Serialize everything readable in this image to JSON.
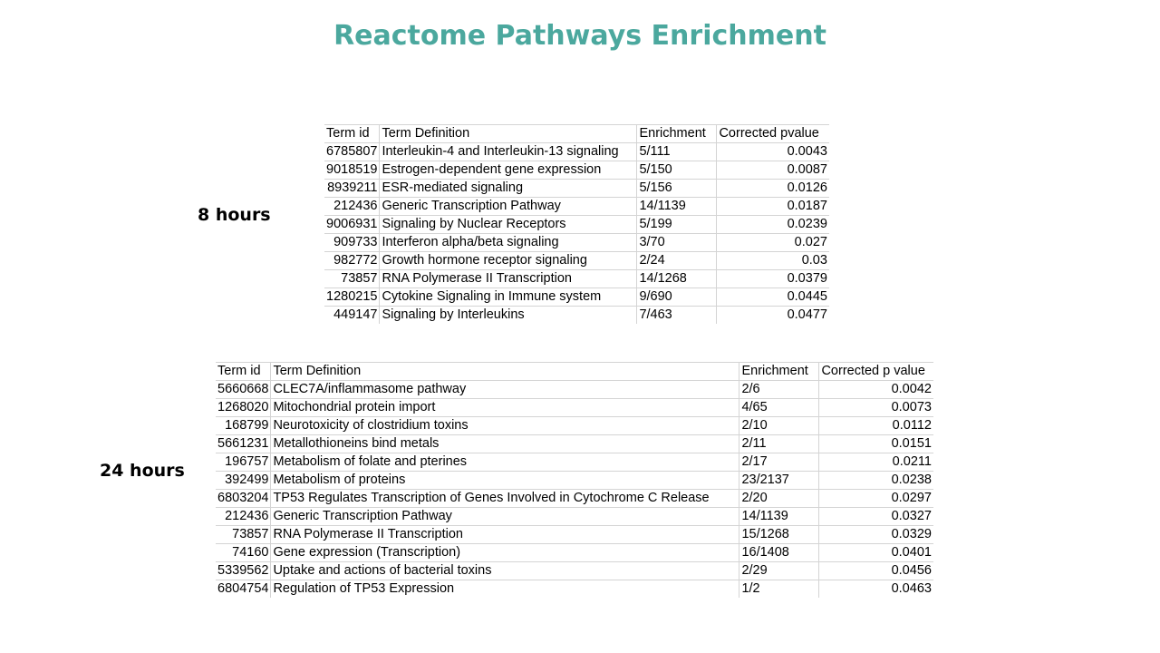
{
  "title": "Reactome Pathways Enrichment",
  "colors": {
    "title": "#4ba89e",
    "grid": "#d4d4d4"
  },
  "sections": [
    {
      "label": "8 hours",
      "headers": [
        "Term id",
        "Term Definition",
        "Enrichment",
        "Corrected pvalue"
      ],
      "rows": [
        [
          "6785807",
          "Interleukin-4 and Interleukin-13 signaling",
          "5/111",
          "0.0043"
        ],
        [
          "9018519",
          "Estrogen-dependent gene expression",
          "5/150",
          "0.0087"
        ],
        [
          "8939211",
          "ESR-mediated signaling",
          "5/156",
          "0.0126"
        ],
        [
          "212436",
          "Generic Transcription Pathway",
          "14/1139",
          "0.0187"
        ],
        [
          "9006931",
          "Signaling by Nuclear Receptors",
          "5/199",
          "0.0239"
        ],
        [
          "909733",
          "Interferon alpha/beta signaling",
          "3/70",
          "0.027"
        ],
        [
          "982772",
          "Growth hormone receptor signaling",
          "2/24",
          "0.03"
        ],
        [
          "73857",
          "RNA Polymerase II Transcription",
          "14/1268",
          "0.0379"
        ],
        [
          "1280215",
          "Cytokine Signaling in Immune system",
          "9/690",
          "0.0445"
        ],
        [
          "449147",
          "Signaling by Interleukins",
          "7/463",
          "0.0477"
        ]
      ]
    },
    {
      "label": "24 hours",
      "headers": [
        "Term id",
        "Term Definition",
        "Enrichment",
        "Corrected p value"
      ],
      "rows": [
        [
          "5660668",
          "CLEC7A/inflammasome pathway",
          "2/6",
          "0.0042"
        ],
        [
          "1268020",
          "Mitochondrial protein import",
          "4/65",
          "0.0073"
        ],
        [
          "168799",
          "Neurotoxicity of clostridium toxins",
          "2/10",
          "0.0112"
        ],
        [
          "5661231",
          "Metallothioneins bind metals",
          "2/11",
          "0.0151"
        ],
        [
          "196757",
          "Metabolism of folate and pterines",
          "2/17",
          "0.0211"
        ],
        [
          "392499",
          "Metabolism of proteins",
          "23/2137",
          "0.0238"
        ],
        [
          "6803204",
          "TP53 Regulates Transcription of Genes Involved in Cytochrome C Release",
          "2/20",
          "0.0297"
        ],
        [
          "212436",
          "Generic Transcription Pathway",
          "14/1139",
          "0.0327"
        ],
        [
          "73857",
          "RNA Polymerase II Transcription",
          "15/1268",
          "0.0329"
        ],
        [
          "74160",
          "Gene expression (Transcription)",
          "16/1408",
          "0.0401"
        ],
        [
          "5339562",
          "Uptake and actions of bacterial toxins",
          "2/29",
          "0.0456"
        ],
        [
          "6804754",
          "Regulation of TP53 Expression",
          "1/2",
          "0.0463"
        ]
      ]
    }
  ]
}
